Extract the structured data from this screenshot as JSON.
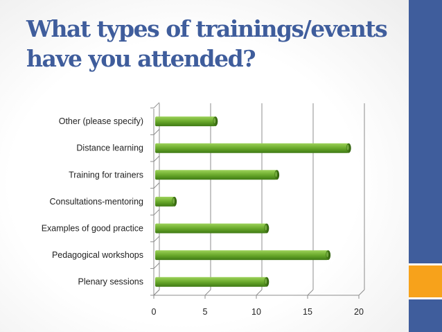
{
  "slide": {
    "title_line1": "What types of trainings/events",
    "title_line2": "have you attended?"
  },
  "colors": {
    "accent_blue": "#3f5d9c",
    "accent_orange": "#f7a21b",
    "bar_green": "#6aaa2c"
  },
  "chart_data": {
    "type": "bar",
    "orientation": "horizontal",
    "categories": [
      "Plenary sessions",
      "Pedagogical workshops",
      "Examples of good practice",
      "Consultations-mentoring",
      "Training for trainers",
      "Distance learning",
      "Other (please specify)"
    ],
    "values": [
      11,
      17,
      11,
      2,
      12,
      19,
      6
    ],
    "xlim": [
      0,
      20
    ],
    "xticks": [
      "0",
      "5",
      "10",
      "15",
      "20"
    ],
    "grid": true,
    "legend": "none",
    "title": "",
    "xlabel": "",
    "ylabel": ""
  }
}
